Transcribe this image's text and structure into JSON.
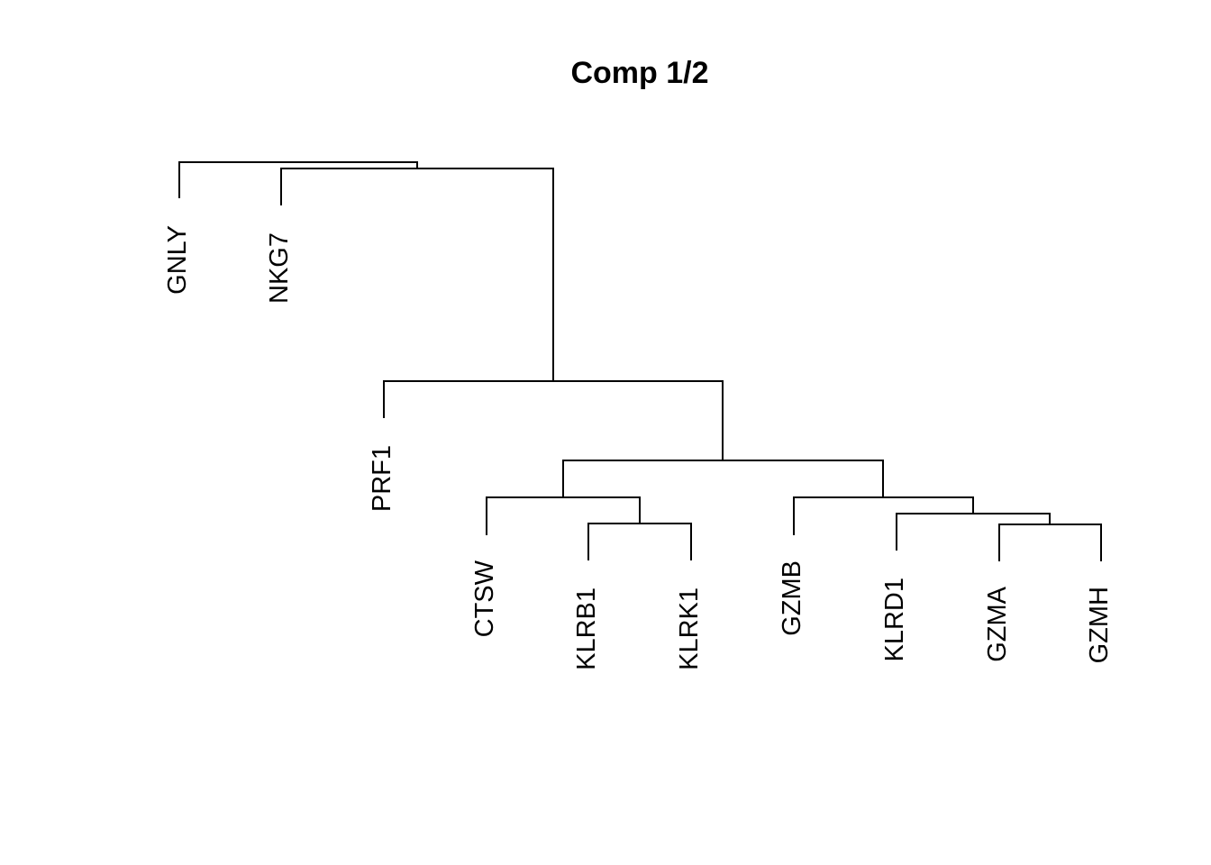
{
  "title": "Comp 1/2",
  "leaves": [
    "GNLY",
    "NKG7",
    "PRF1",
    "CTSW",
    "KLRB1",
    "KLRK1",
    "GZMB",
    "KLRD1",
    "GZMA",
    "GZMH"
  ],
  "colors": {
    "background": "#ffffff",
    "lines": "#000000",
    "text": "#000000"
  }
}
